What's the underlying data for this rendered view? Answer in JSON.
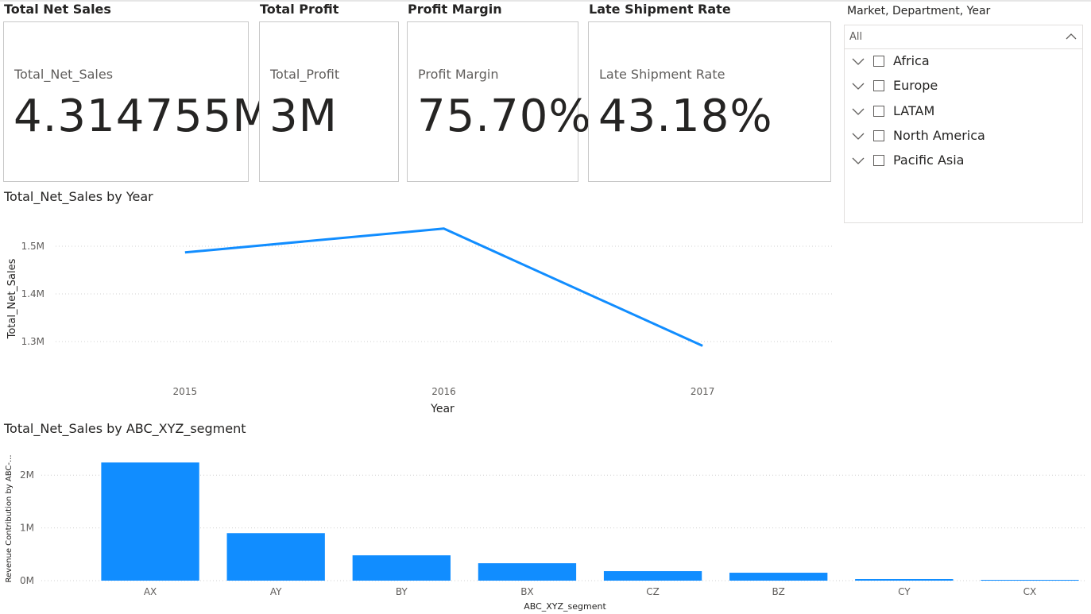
{
  "cards": [
    {
      "title": "Total Net Sales",
      "measure": "Total_Net_Sales",
      "value": "4.314755M"
    },
    {
      "title": "Total Profit",
      "measure": "Total_Profit",
      "value": "3M"
    },
    {
      "title": "Profit Margin",
      "measure": "Profit Margin",
      "value": "75.70%"
    },
    {
      "title": "Late Shipment Rate",
      "measure": "Late Shipment Rate",
      "value": "43.18%"
    }
  ],
  "slicer": {
    "title": "Market, Department, Year",
    "selected": "All",
    "items": [
      "Africa",
      "Europe",
      "LATAM",
      "North America",
      "Pacific Asia"
    ]
  },
  "colors": {
    "accent": "#118dff",
    "grid": "#d0d0d0",
    "text": "#252423",
    "axis": "#605e5c"
  },
  "chart_data": [
    {
      "type": "line",
      "title": "Total_Net_Sales by Year",
      "xlabel": "Year",
      "ylabel": "Total_Net_Sales",
      "categories": [
        "2015",
        "2016",
        "2017"
      ],
      "values": [
        1487000,
        1537000,
        1291000
      ],
      "ylim": [
        1250000,
        1550000
      ],
      "yticks": [
        1300000,
        1400000,
        1500000
      ],
      "ytick_labels": [
        "1.3M",
        "1.4M",
        "1.5M"
      ]
    },
    {
      "type": "bar",
      "title": "Total_Net_Sales by ABC_XYZ_segment",
      "xlabel": "ABC_XYZ_segment",
      "ylabel": "Revenue Contribution by ABC-...",
      "categories": [
        "AX",
        "AY",
        "BY",
        "BX",
        "CZ",
        "BZ",
        "CY",
        "CX"
      ],
      "values": [
        2240000,
        900000,
        480000,
        330000,
        180000,
        150000,
        30000,
        15000
      ],
      "ylim": [
        0,
        2500000
      ],
      "yticks": [
        0,
        1000000,
        2000000
      ],
      "ytick_labels": [
        "0M",
        "1M",
        "2M"
      ]
    }
  ]
}
